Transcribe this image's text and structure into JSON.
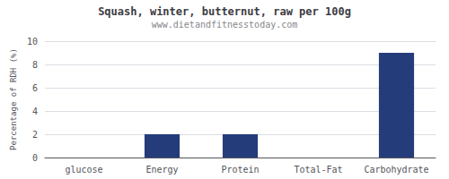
{
  "chart_data": {
    "type": "bar",
    "title": "Squash, winter, butternut, raw per 100g",
    "subtitle": "www.dietandfitnesstoday.com",
    "categories": [
      "glucose",
      "Energy",
      "Protein",
      "Total-Fat",
      "Carbohydrate"
    ],
    "values": [
      0,
      2,
      2,
      0,
      9
    ],
    "color": "#253c7a",
    "ylabel": "Percentage of RDH (%)",
    "ylim": [
      0,
      10
    ],
    "yticks": [
      0,
      2,
      4,
      6,
      8,
      10
    ],
    "grid": true
  }
}
